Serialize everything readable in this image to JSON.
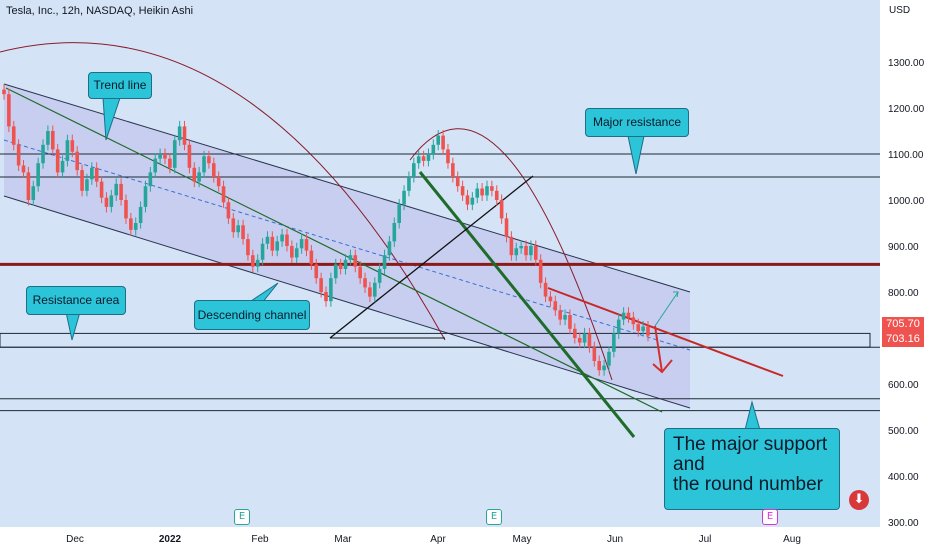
{
  "header": {
    "title": "Tesla, Inc., 12h, NASDAQ, Heikin Ashi",
    "currency": "USD"
  },
  "colors": {
    "background": "#d4e3f5",
    "up": "#26a69a",
    "down": "#ef5350",
    "channel_fill": "#b7b4e9",
    "resistance_band": "#8b1a1a",
    "trend_dark_green": "#1e6b2a",
    "callout": "#2bc4d9",
    "red_trend": "#c62828"
  },
  "badges": {
    "price_1": "705.70",
    "price_2": "703.16",
    "earnings_1": "E",
    "earnings_2": "E",
    "earnings_3": "E"
  },
  "annotations": {
    "trend_line": "Trend line",
    "major_resistance": "Major resistance",
    "resistance_area": "Resistance area",
    "descending_channel": "Descending channel",
    "major_support_line1": "The major support",
    "major_support_line2": "and",
    "major_support_line3": "the round number"
  },
  "chart_data": {
    "type": "candlestick",
    "title": "Tesla, Inc., 12h, NASDAQ, Heikin Ashi",
    "y_axis_unit": "USD",
    "ylim": [
      290,
      1380
    ],
    "y_ticks": [
      1300,
      1200,
      1100,
      1000,
      900,
      800,
      700,
      600,
      500,
      400,
      300
    ],
    "y_tick_labels": [
      "1300.00",
      "1200.00",
      "1100.00",
      "1000.00",
      "900.00",
      "800.00",
      "700.00",
      "600.00",
      "500.00",
      "400.00",
      "300.00"
    ],
    "x_ticks": [
      "Dec",
      "2022",
      "Feb",
      "Mar",
      "Apr",
      "May",
      "Jun",
      "Jul",
      "Aug"
    ],
    "last_prices": [
      705.7,
      703.16
    ],
    "horizontal_levels": [
      1100,
      1050,
      860,
      680,
      568,
      542
    ],
    "ohlc_approx": [
      {
        "o": 1240,
        "c": 1230
      },
      {
        "o": 1230,
        "c": 1160
      },
      {
        "o": 1160,
        "c": 1120
      },
      {
        "o": 1120,
        "c": 1075
      },
      {
        "o": 1075,
        "c": 1060
      },
      {
        "o": 1060,
        "c": 1000
      },
      {
        "o": 1000,
        "c": 1030
      },
      {
        "o": 1030,
        "c": 1080
      },
      {
        "o": 1080,
        "c": 1120
      },
      {
        "o": 1120,
        "c": 1150
      },
      {
        "o": 1150,
        "c": 1110
      },
      {
        "o": 1110,
        "c": 1060
      },
      {
        "o": 1060,
        "c": 1085
      },
      {
        "o": 1085,
        "c": 1130
      },
      {
        "o": 1130,
        "c": 1105
      },
      {
        "o": 1105,
        "c": 1065
      },
      {
        "o": 1065,
        "c": 1020
      },
      {
        "o": 1020,
        "c": 1045
      },
      {
        "o": 1045,
        "c": 1070
      },
      {
        "o": 1070,
        "c": 1040
      },
      {
        "o": 1040,
        "c": 1005
      },
      {
        "o": 1005,
        "c": 985
      },
      {
        "o": 985,
        "c": 1010
      },
      {
        "o": 1010,
        "c": 1035
      },
      {
        "o": 1035,
        "c": 1000
      },
      {
        "o": 1000,
        "c": 960
      },
      {
        "o": 960,
        "c": 935
      },
      {
        "o": 935,
        "c": 950
      },
      {
        "o": 950,
        "c": 985
      },
      {
        "o": 985,
        "c": 1030
      },
      {
        "o": 1030,
        "c": 1060
      },
      {
        "o": 1060,
        "c": 1090
      },
      {
        "o": 1090,
        "c": 1100
      },
      {
        "o": 1100,
        "c": 1090
      },
      {
        "o": 1090,
        "c": 1070
      },
      {
        "o": 1070,
        "c": 1130
      },
      {
        "o": 1130,
        "c": 1160
      },
      {
        "o": 1160,
        "c": 1120
      },
      {
        "o": 1120,
        "c": 1070
      },
      {
        "o": 1070,
        "c": 1040
      },
      {
        "o": 1040,
        "c": 1060
      },
      {
        "o": 1060,
        "c": 1095
      },
      {
        "o": 1095,
        "c": 1080
      },
      {
        "o": 1080,
        "c": 1050
      },
      {
        "o": 1050,
        "c": 1030
      },
      {
        "o": 1030,
        "c": 995
      },
      {
        "o": 995,
        "c": 960
      },
      {
        "o": 960,
        "c": 930
      },
      {
        "o": 930,
        "c": 945
      },
      {
        "o": 945,
        "c": 915
      },
      {
        "o": 915,
        "c": 880
      },
      {
        "o": 880,
        "c": 855
      },
      {
        "o": 855,
        "c": 870
      },
      {
        "o": 870,
        "c": 905
      },
      {
        "o": 905,
        "c": 920
      },
      {
        "o": 920,
        "c": 890
      },
      {
        "o": 890,
        "c": 910
      },
      {
        "o": 910,
        "c": 925
      },
      {
        "o": 925,
        "c": 900
      },
      {
        "o": 900,
        "c": 875
      },
      {
        "o": 875,
        "c": 895
      },
      {
        "o": 895,
        "c": 915
      },
      {
        "o": 915,
        "c": 890
      },
      {
        "o": 890,
        "c": 860
      },
      {
        "o": 860,
        "c": 830
      },
      {
        "o": 830,
        "c": 800
      },
      {
        "o": 800,
        "c": 780
      },
      {
        "o": 780,
        "c": 830
      },
      {
        "o": 830,
        "c": 860
      },
      {
        "o": 860,
        "c": 850
      },
      {
        "o": 850,
        "c": 870
      },
      {
        "o": 870,
        "c": 880
      },
      {
        "o": 880,
        "c": 855
      },
      {
        "o": 855,
        "c": 830
      },
      {
        "o": 830,
        "c": 810
      },
      {
        "o": 810,
        "c": 790
      },
      {
        "o": 790,
        "c": 820
      },
      {
        "o": 820,
        "c": 850
      },
      {
        "o": 850,
        "c": 880
      },
      {
        "o": 880,
        "c": 910
      },
      {
        "o": 910,
        "c": 950
      },
      {
        "o": 950,
        "c": 990
      },
      {
        "o": 990,
        "c": 1020
      },
      {
        "o": 1020,
        "c": 1050
      },
      {
        "o": 1050,
        "c": 1080
      },
      {
        "o": 1080,
        "c": 1095
      },
      {
        "o": 1095,
        "c": 1085
      },
      {
        "o": 1085,
        "c": 1100
      },
      {
        "o": 1100,
        "c": 1120
      },
      {
        "o": 1120,
        "c": 1140
      },
      {
        "o": 1140,
        "c": 1110
      },
      {
        "o": 1110,
        "c": 1080
      },
      {
        "o": 1080,
        "c": 1050
      },
      {
        "o": 1050,
        "c": 1030
      },
      {
        "o": 1030,
        "c": 1010
      },
      {
        "o": 1010,
        "c": 990
      },
      {
        "o": 990,
        "c": 1005
      },
      {
        "o": 1005,
        "c": 1025
      },
      {
        "o": 1025,
        "c": 1010
      },
      {
        "o": 1010,
        "c": 1030
      },
      {
        "o": 1030,
        "c": 1020
      },
      {
        "o": 1020,
        "c": 1000
      },
      {
        "o": 1000,
        "c": 960
      },
      {
        "o": 960,
        "c": 920
      },
      {
        "o": 920,
        "c": 880
      },
      {
        "o": 880,
        "c": 895
      },
      {
        "o": 895,
        "c": 900
      },
      {
        "o": 900,
        "c": 880
      },
      {
        "o": 880,
        "c": 900
      },
      {
        "o": 900,
        "c": 870
      },
      {
        "o": 870,
        "c": 820
      },
      {
        "o": 820,
        "c": 790
      },
      {
        "o": 790,
        "c": 780
      },
      {
        "o": 780,
        "c": 760
      },
      {
        "o": 760,
        "c": 740
      },
      {
        "o": 740,
        "c": 750
      },
      {
        "o": 750,
        "c": 720
      },
      {
        "o": 720,
        "c": 700
      },
      {
        "o": 700,
        "c": 690
      },
      {
        "o": 690,
        "c": 710
      },
      {
        "o": 710,
        "c": 680
      },
      {
        "o": 680,
        "c": 650
      },
      {
        "o": 650,
        "c": 630
      },
      {
        "o": 630,
        "c": 640
      },
      {
        "o": 640,
        "c": 670
      },
      {
        "o": 670,
        "c": 710
      },
      {
        "o": 710,
        "c": 740
      },
      {
        "o": 740,
        "c": 755
      },
      {
        "o": 755,
        "c": 745
      },
      {
        "o": 745,
        "c": 730
      },
      {
        "o": 730,
        "c": 715
      },
      {
        "o": 715,
        "c": 725
      },
      {
        "o": 725,
        "c": 705
      }
    ]
  }
}
